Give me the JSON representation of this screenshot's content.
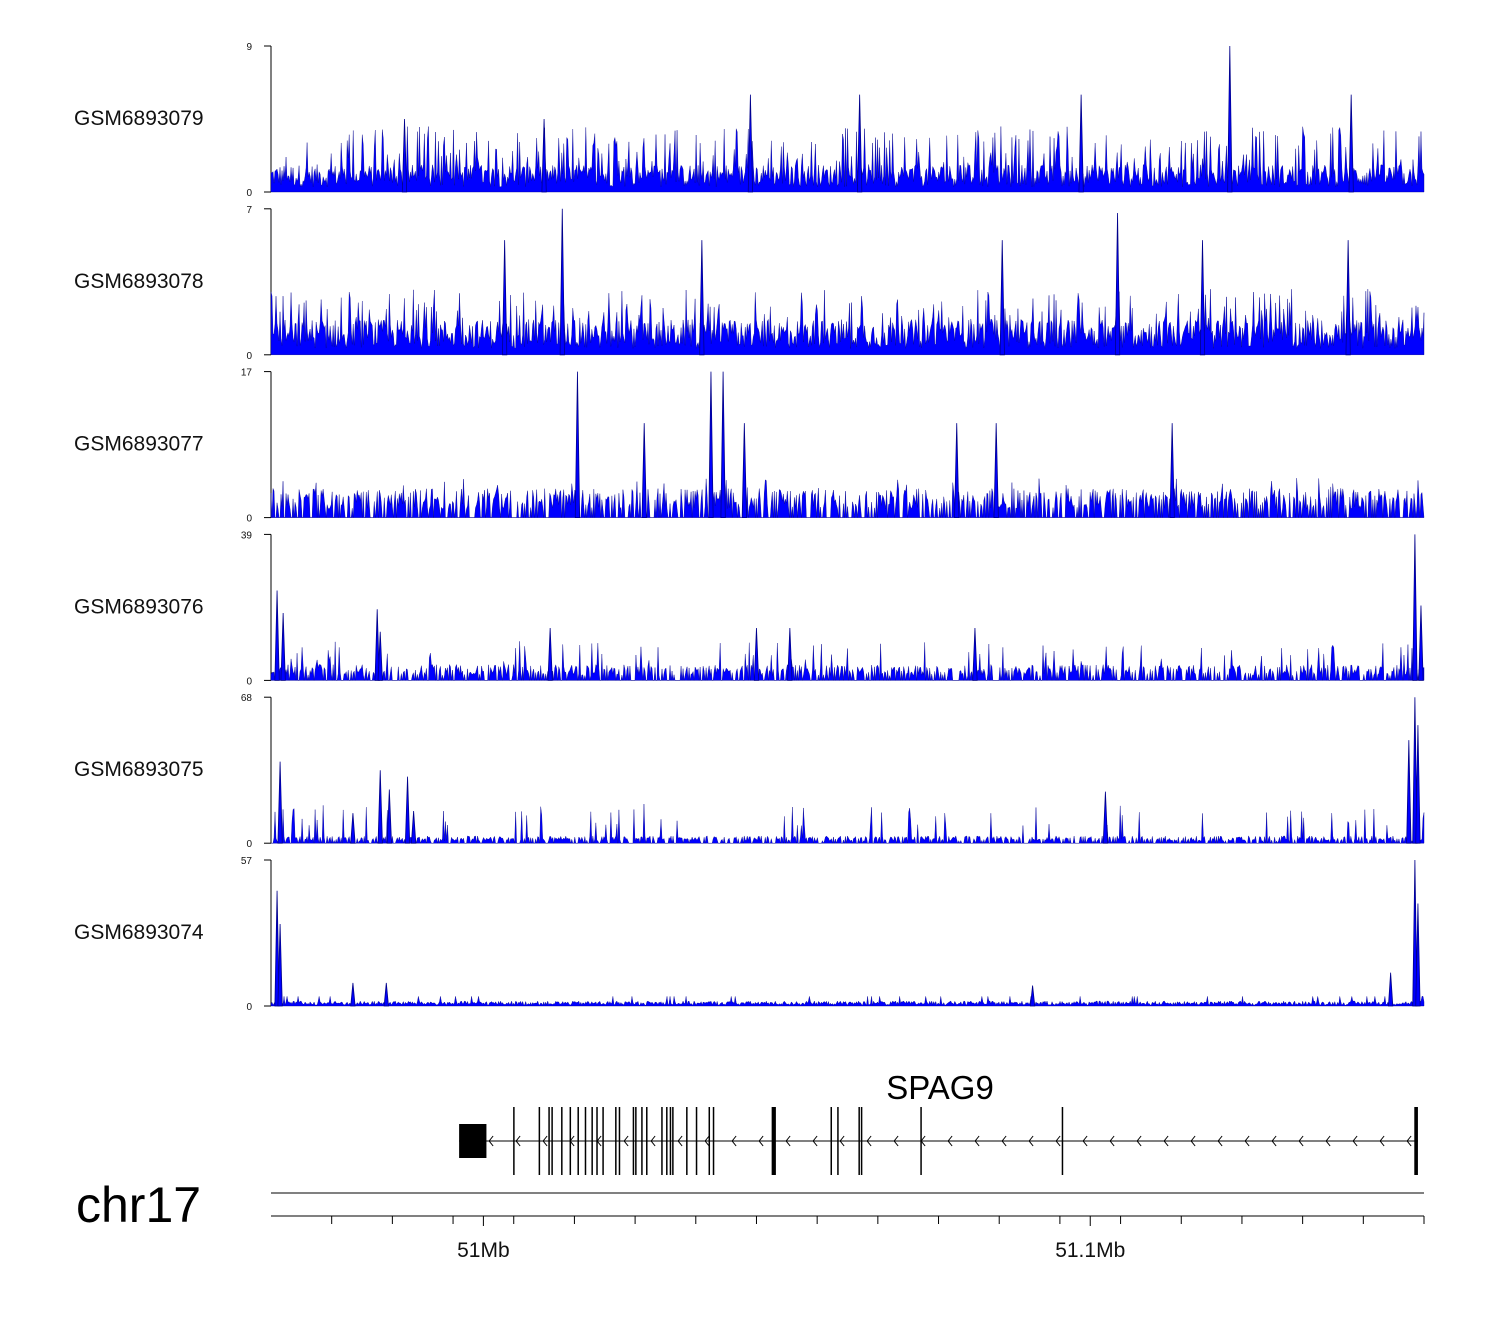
{
  "chart_data": {
    "type": "area",
    "title": "",
    "chromosome": "chr17",
    "xlim_mb": [
      50.965,
      51.155
    ],
    "color": "#0000ff",
    "tracks": [
      {
        "name": "GSM6893079",
        "ymax": 9,
        "yticks": [
          "0",
          "9"
        ],
        "baseline": 1.0,
        "profile": "noisy",
        "peaks": [
          {
            "x": 50.987,
            "y": 4.5
          },
          {
            "x": 51.01,
            "y": 4.5
          },
          {
            "x": 51.044,
            "y": 6
          },
          {
            "x": 51.062,
            "y": 6
          },
          {
            "x": 51.0985,
            "y": 6
          },
          {
            "x": 51.123,
            "y": 9
          },
          {
            "x": 51.143,
            "y": 6
          }
        ]
      },
      {
        "name": "GSM6893078",
        "ymax": 7,
        "yticks": [
          "0",
          "7"
        ],
        "baseline": 1.0,
        "profile": "noisy",
        "peaks": [
          {
            "x": 51.013,
            "y": 7
          },
          {
            "x": 51.0035,
            "y": 5.5
          },
          {
            "x": 51.036,
            "y": 5.5
          },
          {
            "x": 51.0855,
            "y": 5.5
          },
          {
            "x": 51.1045,
            "y": 6.8
          },
          {
            "x": 51.1185,
            "y": 5.5
          },
          {
            "x": 51.1425,
            "y": 5.5
          }
        ]
      },
      {
        "name": "GSM6893077",
        "ymax": 17,
        "yticks": [
          "0",
          "17"
        ],
        "baseline": 2.0,
        "profile": "sparse",
        "peaks": [
          {
            "x": 51.0155,
            "y": 17
          },
          {
            "x": 51.0375,
            "y": 17
          },
          {
            "x": 51.0395,
            "y": 17
          },
          {
            "x": 51.0265,
            "y": 11
          },
          {
            "x": 51.043,
            "y": 11
          },
          {
            "x": 51.078,
            "y": 11
          },
          {
            "x": 51.0845,
            "y": 11
          },
          {
            "x": 51.1135,
            "y": 11
          }
        ]
      },
      {
        "name": "GSM6893076",
        "ymax": 39,
        "yticks": [
          "0",
          "39"
        ],
        "baseline": 2.5,
        "profile": "sparse",
        "peaks": [
          {
            "x": 50.966,
            "y": 24
          },
          {
            "x": 50.967,
            "y": 18
          },
          {
            "x": 50.9825,
            "y": 19
          },
          {
            "x": 50.983,
            "y": 13
          },
          {
            "x": 51.011,
            "y": 14
          },
          {
            "x": 51.045,
            "y": 14
          },
          {
            "x": 51.0505,
            "y": 14
          },
          {
            "x": 51.081,
            "y": 14
          },
          {
            "x": 51.1535,
            "y": 39
          },
          {
            "x": 51.1545,
            "y": 20
          }
        ]
      },
      {
        "name": "GSM6893075",
        "ymax": 68,
        "yticks": [
          "0",
          "68"
        ],
        "baseline": 2.0,
        "profile": "sparse",
        "peaks": [
          {
            "x": 50.9665,
            "y": 38
          },
          {
            "x": 50.9785,
            "y": 14
          },
          {
            "x": 50.983,
            "y": 34
          },
          {
            "x": 50.9845,
            "y": 25
          },
          {
            "x": 50.9875,
            "y": 31
          },
          {
            "x": 50.9885,
            "y": 15
          },
          {
            "x": 51.1025,
            "y": 24
          },
          {
            "x": 51.1535,
            "y": 68
          },
          {
            "x": 51.154,
            "y": 55
          },
          {
            "x": 51.1525,
            "y": 48
          }
        ]
      },
      {
        "name": "GSM6893074",
        "ymax": 57,
        "yticks": [
          "0",
          "57"
        ],
        "baseline": 1.5,
        "profile": "dense",
        "peaks": [
          {
            "x": 50.966,
            "y": 45
          },
          {
            "x": 50.9665,
            "y": 32
          },
          {
            "x": 50.9785,
            "y": 9
          },
          {
            "x": 50.984,
            "y": 9
          },
          {
            "x": 51.0905,
            "y": 8
          },
          {
            "x": 51.1495,
            "y": 13
          },
          {
            "x": 51.1535,
            "y": 57
          },
          {
            "x": 51.154,
            "y": 40
          }
        ]
      }
    ],
    "gene": {
      "name": "SPAG9",
      "strand": "-",
      "start": 50.996,
      "end": 51.154,
      "exons": [
        {
          "start": 50.996,
          "end": 51.0005,
          "thick": true
        },
        {
          "start": 51.0049,
          "end": 51.005
        },
        {
          "start": 51.0091,
          "end": 51.0093
        },
        {
          "start": 51.0107,
          "end": 51.0108
        },
        {
          "start": 51.0112,
          "end": 51.0113
        },
        {
          "start": 51.0128,
          "end": 51.0129
        },
        {
          "start": 51.0142,
          "end": 51.0143
        },
        {
          "start": 51.0155,
          "end": 51.0156
        },
        {
          "start": 51.0167,
          "end": 51.0168
        },
        {
          "start": 51.0178,
          "end": 51.0179
        },
        {
          "start": 51.0186,
          "end": 51.0187
        },
        {
          "start": 51.0196,
          "end": 51.0197
        },
        {
          "start": 51.0217,
          "end": 51.0218
        },
        {
          "start": 51.0223,
          "end": 51.0225
        },
        {
          "start": 51.0246,
          "end": 51.0247
        },
        {
          "start": 51.025,
          "end": 51.0252
        },
        {
          "start": 51.026,
          "end": 51.026
        },
        {
          "start": 51.0268,
          "end": 51.0269
        },
        {
          "start": 51.0293,
          "end": 51.0294
        },
        {
          "start": 51.0301,
          "end": 51.0301
        },
        {
          "start": 51.0307,
          "end": 51.0307
        },
        {
          "start": 51.0311,
          "end": 51.0311
        },
        {
          "start": 51.0334,
          "end": 51.0336
        },
        {
          "start": 51.035,
          "end": 51.035
        },
        {
          "start": 51.0371,
          "end": 51.0372
        },
        {
          "start": 51.0378,
          "end": 51.0379
        },
        {
          "start": 51.0475,
          "end": 51.0482
        },
        {
          "start": 51.0572,
          "end": 51.0573
        },
        {
          "start": 51.0583,
          "end": 51.0584
        },
        {
          "start": 51.0618,
          "end": 51.0619
        },
        {
          "start": 51.0622,
          "end": 51.0623
        },
        {
          "start": 51.072,
          "end": 51.0721
        },
        {
          "start": 51.0953,
          "end": 51.0954
        },
        {
          "start": 51.1534,
          "end": 51.154
        }
      ]
    },
    "xaxis": {
      "minor_ticks": [
        50.975,
        50.985,
        50.995,
        51.005,
        51.015,
        51.025,
        51.035,
        51.045,
        51.055,
        51.065,
        51.075,
        51.085,
        51.095,
        51.105,
        51.115,
        51.125,
        51.135,
        51.145,
        51.155
      ],
      "labels": [
        {
          "value": 51.0,
          "text": "51Mb"
        },
        {
          "value": 51.1,
          "text": "51.1Mb"
        }
      ]
    }
  }
}
